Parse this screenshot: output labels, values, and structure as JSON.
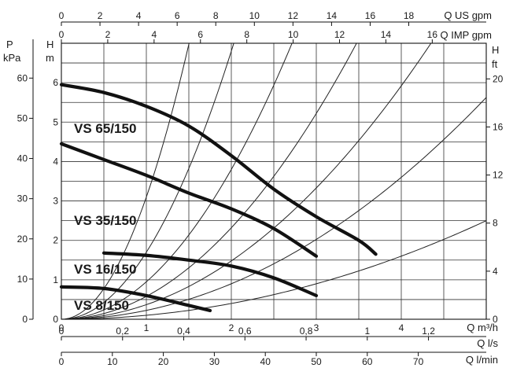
{
  "chart_data": {
    "type": "line",
    "x_axis": {
      "unit_label": "Q m³/h",
      "range": [
        0,
        5
      ],
      "ticks": [
        "0",
        "1",
        "2",
        "3",
        "4"
      ]
    },
    "y_axis": {
      "unit_label_top": "H",
      "unit_label_bottom": "m",
      "range": [
        0,
        7
      ],
      "ticks": [
        "0",
        "1",
        "2",
        "3",
        "4",
        "5",
        "6"
      ]
    },
    "secondary_axes": {
      "kpa": {
        "label_top": "P",
        "label_bottom": "kPa",
        "ticks": [
          {
            "value": 0,
            "label": "0"
          },
          {
            "value": 10,
            "label": "10"
          },
          {
            "value": 20,
            "label": "20"
          },
          {
            "value": 30,
            "label": "30"
          },
          {
            "value": 40,
            "label": "40"
          },
          {
            "value": 50,
            "label": "50"
          },
          {
            "value": 60,
            "label": "60"
          }
        ]
      },
      "ft": {
        "label_top": "H",
        "label_bottom": "ft",
        "ticks": [
          {
            "value": 0,
            "label": "0"
          },
          {
            "value": 4,
            "label": "4"
          },
          {
            "value": 8,
            "label": "8"
          },
          {
            "value": 12,
            "label": "12"
          },
          {
            "value": 16,
            "label": "16"
          },
          {
            "value": 20,
            "label": "20"
          }
        ]
      },
      "us_gpm": {
        "label": "Q US gpm",
        "ticks": [
          {
            "value": 0,
            "label": "0"
          },
          {
            "value": 2,
            "label": "2"
          },
          {
            "value": 4,
            "label": "4"
          },
          {
            "value": 6,
            "label": "6"
          },
          {
            "value": 8,
            "label": "8"
          },
          {
            "value": 10,
            "label": "10"
          },
          {
            "value": 12,
            "label": "12"
          },
          {
            "value": 14,
            "label": "14"
          },
          {
            "value": 16,
            "label": "16"
          },
          {
            "value": 18,
            "label": "18"
          }
        ]
      },
      "imp_gpm": {
        "label": "Q IMP gpm",
        "ticks": [
          {
            "value": 0,
            "label": "0"
          },
          {
            "value": 2,
            "label": "2"
          },
          {
            "value": 4,
            "label": "4"
          },
          {
            "value": 6,
            "label": "6"
          },
          {
            "value": 8,
            "label": "8"
          },
          {
            "value": 10,
            "label": "10"
          },
          {
            "value": 12,
            "label": "12"
          },
          {
            "value": 14,
            "label": "14"
          },
          {
            "value": 16,
            "label": "16"
          }
        ]
      },
      "ls": {
        "label": "Q l/s",
        "ticks": [
          {
            "value": 0,
            "label": "0"
          },
          {
            "value": 0.2,
            "label": "0,2"
          },
          {
            "value": 0.4,
            "label": "0,4"
          },
          {
            "value": 0.6,
            "label": "0,6"
          },
          {
            "value": 0.8,
            "label": "0,8"
          },
          {
            "value": 1,
            "label": "1"
          },
          {
            "value": 1.2,
            "label": "1,2"
          }
        ]
      },
      "lmin": {
        "label": "Q l/min",
        "ticks": [
          {
            "value": 0,
            "label": "0"
          },
          {
            "value": 10,
            "label": "10"
          },
          {
            "value": 20,
            "label": "20"
          },
          {
            "value": 30,
            "label": "30"
          },
          {
            "value": 40,
            "label": "40"
          },
          {
            "value": 50,
            "label": "50"
          },
          {
            "value": 60,
            "label": "60"
          },
          {
            "value": 70,
            "label": "70"
          }
        ]
      }
    },
    "grid": true,
    "series": [
      {
        "name": "VS 65/150",
        "points": [
          [
            0,
            5.95
          ],
          [
            0.5,
            5.75
          ],
          [
            1,
            5.4
          ],
          [
            1.5,
            4.9
          ],
          [
            2,
            4.15
          ],
          [
            2.5,
            3.3
          ],
          [
            3,
            2.6
          ],
          [
            3.5,
            2.0
          ],
          [
            3.7,
            1.65
          ]
        ]
      },
      {
        "name": "VS 35/150",
        "points": [
          [
            0,
            4.45
          ],
          [
            0.5,
            4.05
          ],
          [
            1,
            3.65
          ],
          [
            1.5,
            3.2
          ],
          [
            2,
            2.8
          ],
          [
            2.5,
            2.3
          ],
          [
            3,
            1.6
          ]
        ]
      },
      {
        "name": "VS 16/150",
        "points": [
          [
            0.5,
            1.68
          ],
          [
            1,
            1.62
          ],
          [
            1.5,
            1.5
          ],
          [
            2,
            1.35
          ],
          [
            2.5,
            1.05
          ],
          [
            3,
            0.6
          ]
        ]
      },
      {
        "name": "VS 8/150",
        "points": [
          [
            0,
            0.82
          ],
          [
            0.5,
            0.78
          ],
          [
            1,
            0.6
          ],
          [
            1.5,
            0.35
          ],
          [
            1.75,
            0.22
          ]
        ]
      }
    ],
    "system_curves": [
      {
        "k": 3.1
      },
      {
        "k": 1.7
      },
      {
        "k": 0.95
      },
      {
        "k": 0.58
      },
      {
        "k": 0.37
      },
      {
        "k": 0.225
      },
      {
        "k": 0.1
      }
    ]
  }
}
